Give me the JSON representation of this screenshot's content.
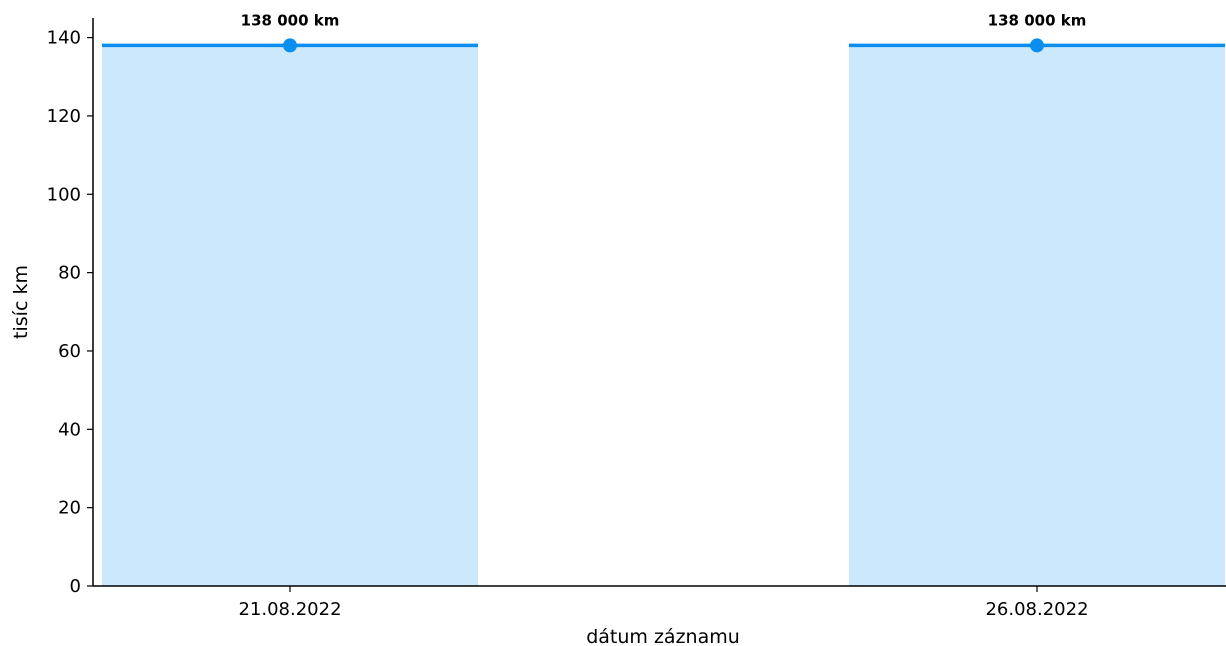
{
  "chart_data": {
    "type": "bar",
    "categories": [
      "21.08.2022",
      "26.08.2022"
    ],
    "values": [
      138,
      138
    ],
    "data_labels": [
      "138 000 km",
      "138 000 km"
    ],
    "xlabel": "dátum záznamu",
    "ylabel": "tisíc km",
    "ylim": [
      0,
      145
    ],
    "yticks": [
      0,
      20,
      40,
      60,
      80,
      100,
      120,
      140
    ],
    "grid": false,
    "colors": {
      "fill": "#cce8fd",
      "line": "#0a8ff0",
      "marker": "#0a8ff0"
    }
  }
}
